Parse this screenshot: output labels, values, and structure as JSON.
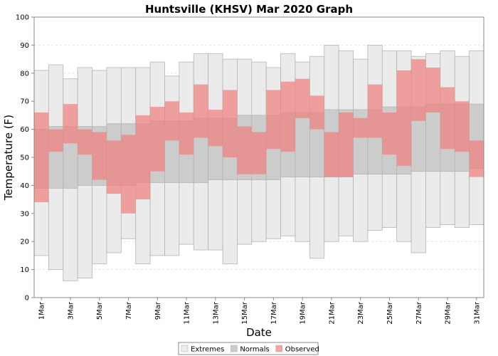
{
  "chart_data": {
    "type": "bar",
    "title": "Huntsville (KHSV) Mar 2020 Graph",
    "xlabel": "Date",
    "ylabel": "Temperature (F)",
    "ylim": [
      0,
      100
    ],
    "yticks": [
      0,
      10,
      20,
      30,
      40,
      50,
      60,
      70,
      80,
      90,
      100
    ],
    "grid": true,
    "legend_position": "bottom",
    "categories": [
      "1Mar",
      "2Mar",
      "3Mar",
      "4Mar",
      "5Mar",
      "6Mar",
      "7Mar",
      "8Mar",
      "9Mar",
      "10Mar",
      "11Mar",
      "12Mar",
      "13Mar",
      "14Mar",
      "15Mar",
      "16Mar",
      "17Mar",
      "18Mar",
      "19Mar",
      "20Mar",
      "21Mar",
      "22Mar",
      "23Mar",
      "24Mar",
      "25Mar",
      "26Mar",
      "27Mar",
      "28Mar",
      "29Mar",
      "30Mar",
      "31Mar"
    ],
    "x_tick_labels": [
      "1Mar",
      "3Mar",
      "5Mar",
      "7Mar",
      "9Mar",
      "11Mar",
      "13Mar",
      "15Mar",
      "17Mar",
      "19Mar",
      "21Mar",
      "23Mar",
      "25Mar",
      "27Mar",
      "29Mar",
      "31Mar"
    ],
    "series": [
      {
        "name": "Extremes",
        "color": "#ebebeb",
        "low": [
          15,
          10,
          6,
          7,
          12,
          16,
          21,
          12,
          15,
          15,
          19,
          17,
          17,
          12,
          19,
          20,
          21,
          22,
          20,
          14,
          20,
          22,
          20,
          24,
          25,
          20,
          16,
          25,
          26,
          25,
          26
        ],
        "high": [
          81,
          83,
          78,
          82,
          81,
          82,
          82,
          82,
          84,
          79,
          84,
          87,
          87,
          85,
          85,
          84,
          82,
          87,
          84,
          86,
          90,
          88,
          85,
          90,
          88,
          88,
          86,
          87,
          88,
          86,
          88
        ]
      },
      {
        "name": "Normals",
        "color": "#cccccc",
        "low": [
          39,
          39,
          39,
          40,
          40,
          40,
          40,
          41,
          41,
          41,
          41,
          41,
          42,
          42,
          42,
          42,
          42,
          43,
          43,
          43,
          43,
          43,
          44,
          44,
          44,
          44,
          45,
          45,
          45,
          45,
          46
        ],
        "high": [
          60,
          61,
          61,
          61,
          61,
          62,
          62,
          62,
          63,
          63,
          63,
          64,
          64,
          64,
          65,
          65,
          65,
          66,
          66,
          66,
          67,
          67,
          67,
          67,
          68,
          68,
          68,
          69,
          69,
          69,
          69
        ]
      },
      {
        "name": "Observed",
        "color": "#f08080",
        "low": [
          34,
          52,
          55,
          51,
          42,
          37,
          30,
          35,
          45,
          56,
          51,
          57,
          54,
          50,
          44,
          44,
          53,
          52,
          64,
          60,
          43,
          43,
          57,
          57,
          51,
          47,
          63,
          66,
          53,
          52,
          43
        ],
        "high": [
          66,
          60,
          69,
          60,
          59,
          56,
          58,
          65,
          68,
          70,
          66,
          76,
          67,
          74,
          61,
          59,
          74,
          77,
          78,
          72,
          59,
          66,
          64,
          76,
          66,
          81,
          85,
          82,
          75,
          70,
          56
        ]
      }
    ]
  }
}
